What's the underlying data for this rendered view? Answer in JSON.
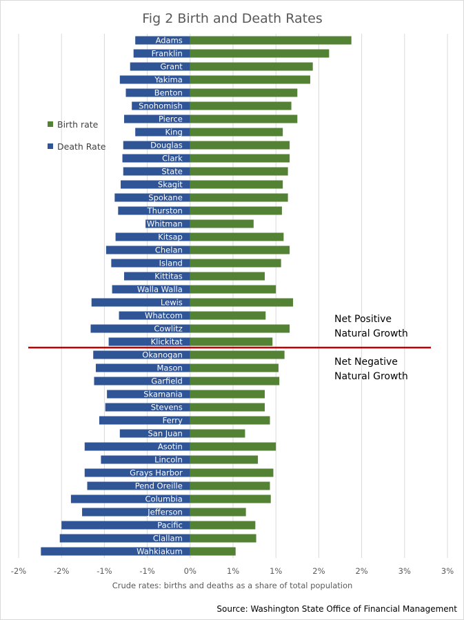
{
  "chart_data": {
    "type": "bar",
    "title": "Fig 2 Birth and Death Rates",
    "xlabel": "Crude rates: births and deaths as a share of total population",
    "source": "Source: Washington State Office of Financial Management",
    "xlim": [
      -2.0,
      3.0
    ],
    "xticks": [
      -2,
      -1.5,
      -1,
      -0.5,
      0,
      0.5,
      1,
      1.5,
      2,
      2.5,
      3
    ],
    "xtick_labels": [
      "-2%",
      "-2%",
      "-1%",
      "-1%",
      "0%",
      "1%",
      "1%",
      "2%",
      "2%",
      "3%",
      "3%"
    ],
    "grid": "vertical",
    "legend_position": "left",
    "categories": [
      "Adams",
      "Franklin",
      "Grant",
      "Yakima",
      "Benton",
      "Snohomish",
      "Pierce",
      "King",
      "Douglas",
      "Clark",
      "State",
      "Skagit",
      "Spokane",
      "Thurston",
      "Whitman",
      "Kitsap",
      "Chelan",
      "Island",
      "Kittitas",
      "Walla Walla",
      "Lewis",
      "Whatcom",
      "Cowlitz",
      "Klickitat",
      "Okanogan",
      "Mason",
      "Garfield",
      "Skamania",
      "Stevens",
      "Ferry",
      "San Juan",
      "Asotin",
      "Lincoln",
      "Grays Harbor",
      "Pend Oreille",
      "Columbia",
      "Jefferson",
      "Pacific",
      "Clallam",
      "Wahkiakum"
    ],
    "series": [
      {
        "name": "Birth rate",
        "color": "#548235",
        "values": [
          1.88,
          1.62,
          1.43,
          1.4,
          1.25,
          1.18,
          1.25,
          1.08,
          1.16,
          1.16,
          1.14,
          1.08,
          1.14,
          1.07,
          0.74,
          1.09,
          1.16,
          1.06,
          0.87,
          1.0,
          1.2,
          0.88,
          1.16,
          0.96,
          1.1,
          1.03,
          1.04,
          0.87,
          0.87,
          0.93,
          0.64,
          1.0,
          0.79,
          0.97,
          0.93,
          0.94,
          0.65,
          0.76,
          0.77,
          0.53
        ]
      },
      {
        "name": "Death Rate",
        "color": "#2f5597",
        "values": [
          -0.64,
          -0.66,
          -0.7,
          -0.82,
          -0.75,
          -0.68,
          -0.77,
          -0.64,
          -0.78,
          -0.79,
          -0.78,
          -0.81,
          -0.88,
          -0.84,
          -0.52,
          -0.87,
          -0.98,
          -0.92,
          -0.77,
          -0.91,
          -1.15,
          -0.83,
          -1.16,
          -0.95,
          -1.13,
          -1.1,
          -1.12,
          -0.97,
          -0.99,
          -1.06,
          -0.82,
          -1.23,
          -1.04,
          -1.23,
          -1.2,
          -1.39,
          -1.26,
          -1.5,
          -1.52,
          -1.74
        ]
      }
    ],
    "divider_after": "Klickitat",
    "divider_color": "#c00000",
    "annotations": [
      {
        "lines": [
          "Net Positive",
          "Natural Growth"
        ],
        "position": "above-divider"
      },
      {
        "lines": [
          "Net Negative",
          "Natural Growth"
        ],
        "position": "below-divider"
      }
    ]
  }
}
